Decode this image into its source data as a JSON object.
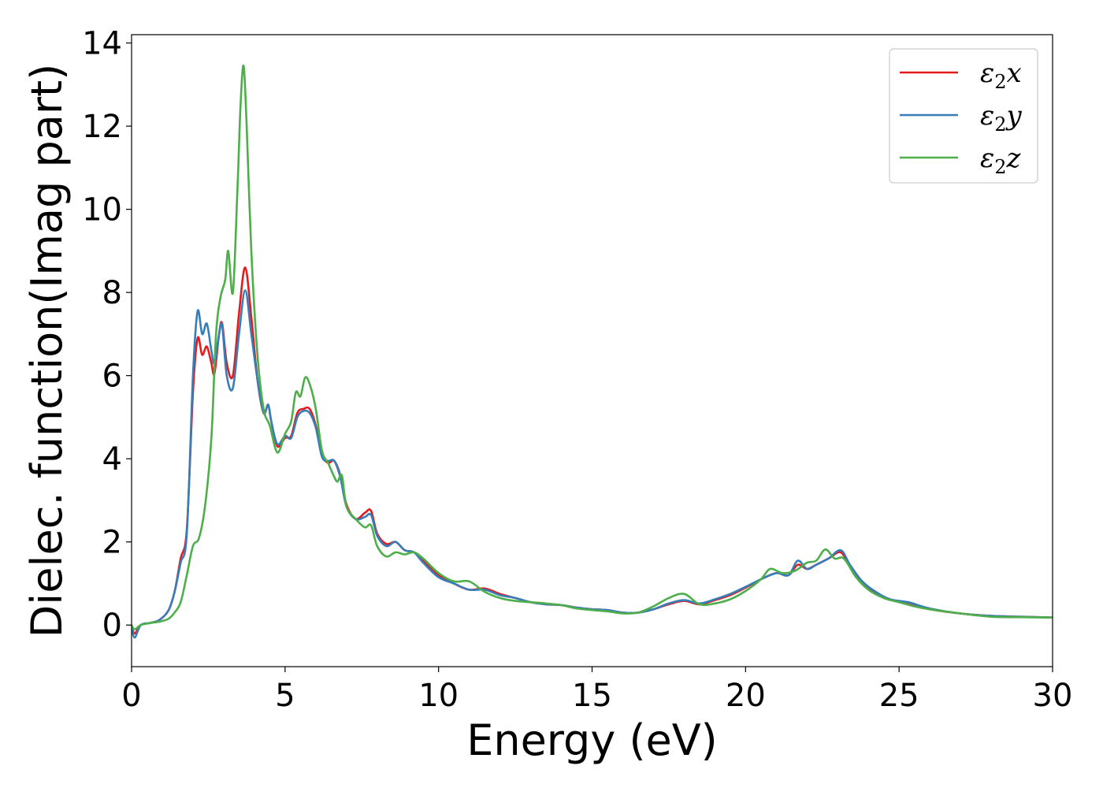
{
  "chart_data": {
    "type": "line",
    "title": "",
    "xlabel": "Energy (eV)",
    "ylabel": "Dielec. function(Imag part)",
    "xlim": [
      0,
      30
    ],
    "ylim": [
      -1,
      14.2
    ],
    "xticks": [
      0,
      5,
      10,
      15,
      20,
      25,
      30
    ],
    "yticks": [
      0,
      2,
      4,
      6,
      8,
      10,
      12,
      14
    ],
    "grid": false,
    "legend_position": "top-right",
    "series": [
      {
        "name": "ε₂x",
        "legend_main": "ε",
        "legend_sub": "2",
        "legend_tail": "x",
        "color": "#e41a1c",
        "points": [
          [
            0,
            0
          ],
          [
            0.1,
            -0.2
          ],
          [
            0.3,
            0
          ],
          [
            0.6,
            0.05
          ],
          [
            0.9,
            0.12
          ],
          [
            1.2,
            0.35
          ],
          [
            1.4,
            0.8
          ],
          [
            1.6,
            1.6
          ],
          [
            1.8,
            2.3
          ],
          [
            2.0,
            5.6
          ],
          [
            2.15,
            6.9
          ],
          [
            2.3,
            6.5
          ],
          [
            2.45,
            6.7
          ],
          [
            2.6,
            6.3
          ],
          [
            2.7,
            6.05
          ],
          [
            2.85,
            7.0
          ],
          [
            2.95,
            7.25
          ],
          [
            3.1,
            6.3
          ],
          [
            3.3,
            6.0
          ],
          [
            3.5,
            7.5
          ],
          [
            3.7,
            8.6
          ],
          [
            3.9,
            7.4
          ],
          [
            4.1,
            5.9
          ],
          [
            4.3,
            5.1
          ],
          [
            4.45,
            5.3
          ],
          [
            4.55,
            4.9
          ],
          [
            4.75,
            4.3
          ],
          [
            5.0,
            4.5
          ],
          [
            5.2,
            4.55
          ],
          [
            5.4,
            5.1
          ],
          [
            5.6,
            5.2
          ],
          [
            5.8,
            5.2
          ],
          [
            6.0,
            4.8
          ],
          [
            6.2,
            4.1
          ],
          [
            6.4,
            3.9
          ],
          [
            6.6,
            3.95
          ],
          [
            6.8,
            3.6
          ],
          [
            7.0,
            2.9
          ],
          [
            7.3,
            2.55
          ],
          [
            7.6,
            2.7
          ],
          [
            7.8,
            2.75
          ],
          [
            8.0,
            2.2
          ],
          [
            8.3,
            1.95
          ],
          [
            8.6,
            2.0
          ],
          [
            8.9,
            1.8
          ],
          [
            9.2,
            1.75
          ],
          [
            9.5,
            1.55
          ],
          [
            10.0,
            1.2
          ],
          [
            10.5,
            1.0
          ],
          [
            11.0,
            0.85
          ],
          [
            11.5,
            0.88
          ],
          [
            12.0,
            0.75
          ],
          [
            12.5,
            0.65
          ],
          [
            13.0,
            0.55
          ],
          [
            13.5,
            0.5
          ],
          [
            14.0,
            0.48
          ],
          [
            14.5,
            0.42
          ],
          [
            15.0,
            0.38
          ],
          [
            15.5,
            0.36
          ],
          [
            16.0,
            0.3
          ],
          [
            16.5,
            0.3
          ],
          [
            17.0,
            0.38
          ],
          [
            17.5,
            0.5
          ],
          [
            18.0,
            0.58
          ],
          [
            18.5,
            0.5
          ],
          [
            19.0,
            0.6
          ],
          [
            19.5,
            0.72
          ],
          [
            20.0,
            0.9
          ],
          [
            20.5,
            1.1
          ],
          [
            21.0,
            1.25
          ],
          [
            21.4,
            1.2
          ],
          [
            21.7,
            1.45
          ],
          [
            22.0,
            1.35
          ],
          [
            22.3,
            1.45
          ],
          [
            22.7,
            1.6
          ],
          [
            23.1,
            1.75
          ],
          [
            23.4,
            1.4
          ],
          [
            23.8,
            1.05
          ],
          [
            24.2,
            0.8
          ],
          [
            24.7,
            0.62
          ],
          [
            25.3,
            0.5
          ],
          [
            26.0,
            0.38
          ],
          [
            27.0,
            0.28
          ],
          [
            28.0,
            0.22
          ],
          [
            29.0,
            0.2
          ],
          [
            30.0,
            0.18
          ]
        ]
      },
      {
        "name": "ε₂y",
        "legend_main": "ε",
        "legend_sub": "2",
        "legend_tail": "y",
        "color": "#377eb8",
        "points": [
          [
            0,
            0
          ],
          [
            0.1,
            -0.3
          ],
          [
            0.3,
            0
          ],
          [
            0.6,
            0.05
          ],
          [
            0.9,
            0.12
          ],
          [
            1.2,
            0.35
          ],
          [
            1.4,
            0.8
          ],
          [
            1.6,
            1.5
          ],
          [
            1.8,
            2.2
          ],
          [
            2.0,
            6.0
          ],
          [
            2.15,
            7.55
          ],
          [
            2.3,
            7.0
          ],
          [
            2.45,
            7.25
          ],
          [
            2.6,
            6.6
          ],
          [
            2.7,
            6.3
          ],
          [
            2.85,
            7.0
          ],
          [
            2.95,
            7.2
          ],
          [
            3.1,
            6.0
          ],
          [
            3.3,
            5.7
          ],
          [
            3.5,
            7.0
          ],
          [
            3.7,
            8.05
          ],
          [
            3.9,
            7.0
          ],
          [
            4.1,
            5.9
          ],
          [
            4.3,
            5.1
          ],
          [
            4.45,
            5.3
          ],
          [
            4.55,
            4.9
          ],
          [
            4.75,
            4.35
          ],
          [
            5.0,
            4.55
          ],
          [
            5.2,
            4.5
          ],
          [
            5.4,
            5.0
          ],
          [
            5.6,
            5.15
          ],
          [
            5.8,
            5.1
          ],
          [
            6.0,
            4.75
          ],
          [
            6.2,
            4.05
          ],
          [
            6.4,
            3.95
          ],
          [
            6.6,
            3.95
          ],
          [
            6.8,
            3.55
          ],
          [
            7.0,
            2.85
          ],
          [
            7.3,
            2.55
          ],
          [
            7.6,
            2.6
          ],
          [
            7.8,
            2.65
          ],
          [
            8.0,
            2.15
          ],
          [
            8.3,
            1.9
          ],
          [
            8.6,
            2.0
          ],
          [
            8.9,
            1.8
          ],
          [
            9.2,
            1.75
          ],
          [
            9.5,
            1.5
          ],
          [
            10.0,
            1.15
          ],
          [
            10.5,
            1.0
          ],
          [
            11.0,
            0.85
          ],
          [
            11.5,
            0.85
          ],
          [
            12.0,
            0.72
          ],
          [
            12.5,
            0.65
          ],
          [
            13.0,
            0.55
          ],
          [
            13.5,
            0.5
          ],
          [
            14.0,
            0.48
          ],
          [
            14.5,
            0.42
          ],
          [
            15.0,
            0.38
          ],
          [
            15.5,
            0.36
          ],
          [
            16.0,
            0.3
          ],
          [
            16.5,
            0.3
          ],
          [
            17.0,
            0.38
          ],
          [
            17.5,
            0.52
          ],
          [
            18.0,
            0.6
          ],
          [
            18.5,
            0.52
          ],
          [
            19.0,
            0.62
          ],
          [
            19.5,
            0.75
          ],
          [
            20.0,
            0.92
          ],
          [
            20.5,
            1.1
          ],
          [
            21.0,
            1.25
          ],
          [
            21.4,
            1.2
          ],
          [
            21.7,
            1.55
          ],
          [
            22.0,
            1.35
          ],
          [
            22.3,
            1.45
          ],
          [
            22.7,
            1.6
          ],
          [
            23.1,
            1.8
          ],
          [
            23.4,
            1.45
          ],
          [
            23.8,
            1.05
          ],
          [
            24.2,
            0.82
          ],
          [
            24.7,
            0.62
          ],
          [
            25.3,
            0.55
          ],
          [
            26.0,
            0.4
          ],
          [
            27.0,
            0.28
          ],
          [
            28.0,
            0.22
          ],
          [
            29.0,
            0.2
          ],
          [
            30.0,
            0.18
          ]
        ]
      },
      {
        "name": "ε₂z",
        "legend_main": "ε",
        "legend_sub": "2",
        "legend_tail": "z",
        "color": "#4daf4a",
        "points": [
          [
            0,
            0
          ],
          [
            0.1,
            -0.1
          ],
          [
            0.3,
            0
          ],
          [
            0.6,
            0.05
          ],
          [
            0.9,
            0.08
          ],
          [
            1.2,
            0.15
          ],
          [
            1.4,
            0.3
          ],
          [
            1.6,
            0.55
          ],
          [
            1.8,
            1.2
          ],
          [
            2.0,
            1.9
          ],
          [
            2.2,
            2.1
          ],
          [
            2.4,
            2.9
          ],
          [
            2.6,
            4.5
          ],
          [
            2.75,
            7.0
          ],
          [
            2.9,
            7.9
          ],
          [
            3.05,
            8.3
          ],
          [
            3.15,
            9.0
          ],
          [
            3.3,
            8.0
          ],
          [
            3.45,
            10.5
          ],
          [
            3.55,
            12.5
          ],
          [
            3.65,
            13.45
          ],
          [
            3.75,
            12.0
          ],
          [
            3.9,
            9.0
          ],
          [
            4.1,
            6.5
          ],
          [
            4.3,
            5.2
          ],
          [
            4.5,
            4.8
          ],
          [
            4.75,
            4.15
          ],
          [
            5.0,
            4.6
          ],
          [
            5.2,
            4.9
          ],
          [
            5.35,
            5.6
          ],
          [
            5.5,
            5.5
          ],
          [
            5.65,
            5.95
          ],
          [
            5.8,
            5.8
          ],
          [
            6.0,
            5.2
          ],
          [
            6.2,
            4.2
          ],
          [
            6.4,
            3.9
          ],
          [
            6.55,
            3.65
          ],
          [
            6.7,
            3.45
          ],
          [
            6.85,
            3.6
          ],
          [
            7.0,
            2.85
          ],
          [
            7.3,
            2.55
          ],
          [
            7.6,
            2.35
          ],
          [
            7.8,
            2.4
          ],
          [
            8.0,
            1.9
          ],
          [
            8.3,
            1.65
          ],
          [
            8.6,
            1.75
          ],
          [
            8.9,
            1.7
          ],
          [
            9.2,
            1.75
          ],
          [
            9.5,
            1.6
          ],
          [
            10.0,
            1.25
          ],
          [
            10.5,
            1.05
          ],
          [
            11.0,
            1.05
          ],
          [
            11.5,
            0.8
          ],
          [
            12.0,
            0.65
          ],
          [
            12.5,
            0.58
          ],
          [
            13.0,
            0.55
          ],
          [
            13.5,
            0.52
          ],
          [
            14.0,
            0.48
          ],
          [
            14.5,
            0.4
          ],
          [
            15.0,
            0.36
          ],
          [
            15.5,
            0.33
          ],
          [
            16.0,
            0.28
          ],
          [
            16.5,
            0.3
          ],
          [
            17.0,
            0.45
          ],
          [
            17.5,
            0.65
          ],
          [
            18.0,
            0.75
          ],
          [
            18.5,
            0.5
          ],
          [
            19.0,
            0.52
          ],
          [
            19.5,
            0.62
          ],
          [
            20.0,
            0.82
          ],
          [
            20.5,
            1.1
          ],
          [
            20.8,
            1.35
          ],
          [
            21.2,
            1.25
          ],
          [
            21.6,
            1.3
          ],
          [
            22.0,
            1.5
          ],
          [
            22.3,
            1.55
          ],
          [
            22.6,
            1.82
          ],
          [
            22.9,
            1.6
          ],
          [
            23.2,
            1.6
          ],
          [
            23.6,
            1.15
          ],
          [
            24.0,
            0.85
          ],
          [
            24.5,
            0.65
          ],
          [
            25.0,
            0.55
          ],
          [
            25.5,
            0.45
          ],
          [
            26.0,
            0.38
          ],
          [
            27.0,
            0.28
          ],
          [
            28.0,
            0.2
          ],
          [
            29.0,
            0.19
          ],
          [
            30.0,
            0.18
          ]
        ]
      }
    ]
  }
}
